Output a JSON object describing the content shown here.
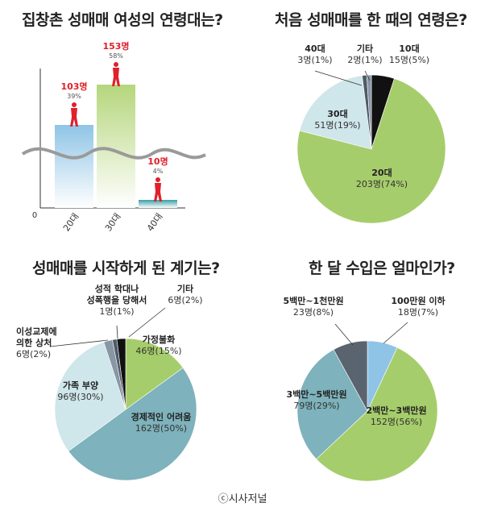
{
  "credit": "ⓒ시사저널",
  "chart_data": [
    {
      "type": "bar",
      "title": "집창촌 성매매 여성의 연령대는?",
      "categories": [
        "20대",
        "30대",
        "40대"
      ],
      "values": [
        103,
        153,
        10
      ],
      "value_labels": [
        "103명",
        "153명",
        "10명"
      ],
      "percent_labels": [
        "39%",
        "58%",
        "4%"
      ],
      "ylim": [
        0,
        160
      ],
      "y_origin_label": "0",
      "colors": [
        "#8fc4e6",
        "#b5d67c",
        "#3a9ea4"
      ],
      "label_color": "#e0202a"
    },
    {
      "type": "pie",
      "title": "처음 성매매를 한 때의 연령은?",
      "slices": [
        {
          "label": "10대",
          "value_text": "15명(5%)",
          "value": 5,
          "color": "#111111"
        },
        {
          "label": "20대",
          "value_text": "203명(74%)",
          "value": 74,
          "color": "#a6cd6b"
        },
        {
          "label": "30대",
          "value_text": "51명(19%)",
          "value": 19,
          "color": "#cfe6ea"
        },
        {
          "label": "40대",
          "value_text": "3명(1%)",
          "value": 1,
          "color": "#4e5a66"
        },
        {
          "label": "기타",
          "value_text": "2명(1%)",
          "value": 1,
          "color": "#8896a6"
        }
      ]
    },
    {
      "type": "pie",
      "title": "성매매를 시작하게 된 계기는?",
      "slices": [
        {
          "label": "가정불화",
          "value_text": "46명(15%)",
          "value": 15,
          "color": "#a6cd6b"
        },
        {
          "label": "경제적인 어려움",
          "value_text": "162명(50%)",
          "value": 50,
          "color": "#7eb2bc"
        },
        {
          "label": "가족 부양",
          "value_text": "96명(30%)",
          "value": 30,
          "color": "#cfe6ea"
        },
        {
          "label": "이성교제에 의한 상처",
          "value_text": "6명(2%)",
          "value": 2,
          "color": "#8896a6"
        },
        {
          "label": "성적 학대나 성폭행을 당해서",
          "value_text": "1명(1%)",
          "value": 1,
          "color": "#4e5a66"
        },
        {
          "label": "기타",
          "value_text": "6명(2%)",
          "value": 2,
          "color": "#111111"
        }
      ]
    },
    {
      "type": "pie",
      "title": "한 달 수입은 얼마인가?",
      "slices": [
        {
          "label": "100만원 이하",
          "value_text": "18명(7%)",
          "value": 7,
          "color": "#8fc4e6"
        },
        {
          "label": "2백만~3백만원",
          "value_text": "152명(56%)",
          "value": 56,
          "color": "#a6cd6b"
        },
        {
          "label": "3백만~5백만원",
          "value_text": "79명(29%)",
          "value": 29,
          "color": "#7eb2bc"
        },
        {
          "label": "5백만~1천만원",
          "value_text": "23명(8%)",
          "value": 8,
          "color": "#59646e"
        }
      ]
    }
  ]
}
